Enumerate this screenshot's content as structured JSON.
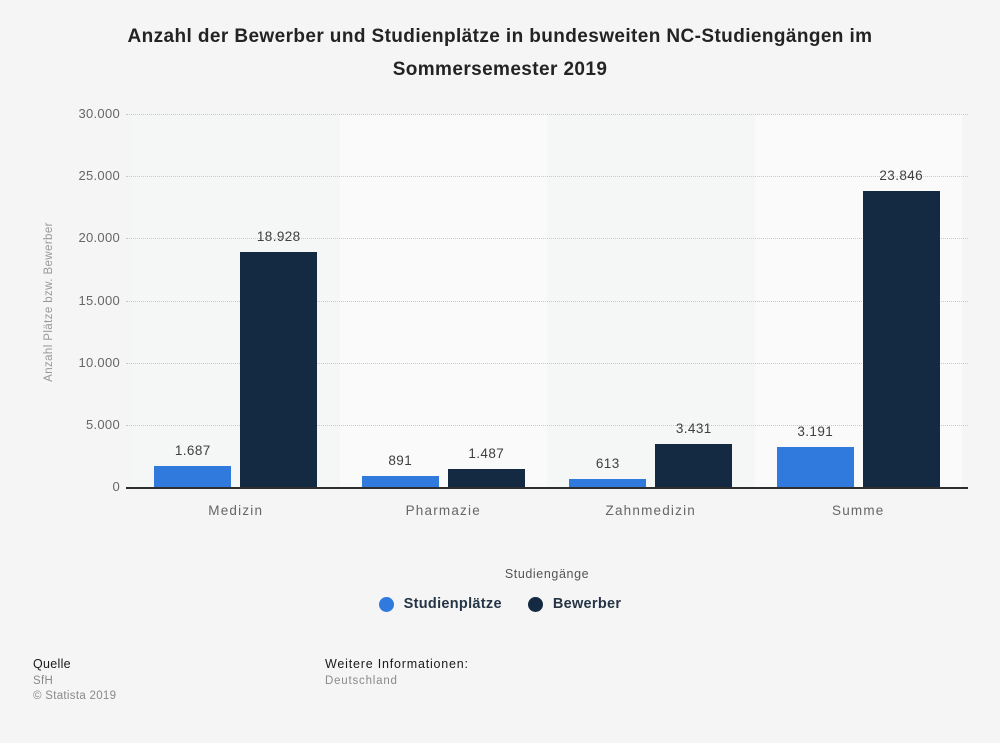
{
  "title": "Anzahl der Bewerber und Studienplätze in bundesweiten NC-Studiengängen im Sommersemester 2019",
  "chart_data": {
    "type": "bar",
    "categories": [
      "Medizin",
      "Pharmazie",
      "Zahnmedizin",
      "Summe"
    ],
    "series": [
      {
        "name": "Studienplätze",
        "color": "#3079dd",
        "values": [
          1687,
          891,
          613,
          3191
        ],
        "labels": [
          "1.687",
          "891",
          "613",
          "3.191"
        ]
      },
      {
        "name": "Bewerber",
        "color": "#132a42",
        "values": [
          18928,
          1487,
          3431,
          23846
        ],
        "labels": [
          "18.928",
          "1.487",
          "3.431",
          "23.846"
        ]
      }
    ],
    "xlabel": "Studiengänge",
    "ylabel": "Anzahl Plätze bzw. Bewerber",
    "ylim": [
      0,
      30000
    ],
    "yticks": [
      {
        "value": 0,
        "label": "0"
      },
      {
        "value": 5000,
        "label": "5.000"
      },
      {
        "value": 10000,
        "label": "10.000"
      },
      {
        "value": 15000,
        "label": "15.000"
      },
      {
        "value": 20000,
        "label": "20.000"
      },
      {
        "value": 25000,
        "label": "25.000"
      },
      {
        "value": 30000,
        "label": "30.000"
      }
    ],
    "grid": "horizontal-dotted",
    "legend_position": "bottom-center",
    "band_colors": [
      "#f5f6f6",
      "#fafafa",
      "#f5f6f6",
      "#fafafa"
    ]
  },
  "footer": {
    "source_label": "Quelle",
    "source": "SfH",
    "copyright": "© Statista 2019",
    "info_label": "Weitere Informationen:",
    "info": "Deutschland"
  },
  "colors": {
    "background": "#f5f5f5",
    "series_blue": "#3079dd",
    "series_navy": "#132a42",
    "gridline": "#c9c9c9",
    "axis_line": "#2e2e2e",
    "tick_text": "#666666",
    "value_text": "#3f3f3f",
    "title_text": "#232323"
  }
}
